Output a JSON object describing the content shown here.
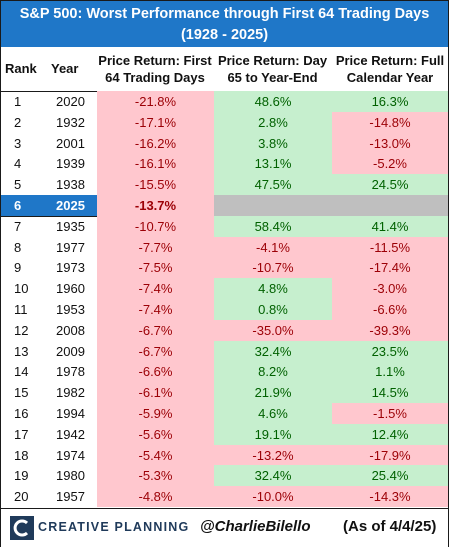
{
  "title": {
    "line1": "S&P 500: Worst Performance through First 64 Trading Days",
    "line2": "(1928 - 2025)"
  },
  "headers": {
    "rank": "Rank",
    "year": "Year",
    "col1": [
      "Price Return: First",
      "64 Trading Days"
    ],
    "col2": [
      "Price Return: Day",
      "65 to Year-End"
    ],
    "col3": [
      "Price Return: Full",
      "Calendar  Year"
    ]
  },
  "rows": [
    {
      "rank": "1",
      "year": "2020",
      "first64": "-21.8%",
      "day65": "48.6%",
      "full": "16.3%"
    },
    {
      "rank": "2",
      "year": "1932",
      "first64": "-17.1%",
      "day65": "2.8%",
      "full": "-14.8%"
    },
    {
      "rank": "3",
      "year": "2001",
      "first64": "-16.2%",
      "day65": "3.8%",
      "full": "-13.0%"
    },
    {
      "rank": "4",
      "year": "1939",
      "first64": "-16.1%",
      "day65": "13.1%",
      "full": "-5.2%"
    },
    {
      "rank": "5",
      "year": "1938",
      "first64": "-15.5%",
      "day65": "47.5%",
      "full": "24.5%"
    },
    {
      "rank": "6",
      "year": "2025",
      "first64": "-13.7%",
      "day65": "",
      "full": "",
      "highlight": true
    },
    {
      "rank": "7",
      "year": "1935",
      "first64": "-10.7%",
      "day65": "58.4%",
      "full": "41.4%"
    },
    {
      "rank": "8",
      "year": "1977",
      "first64": "-7.7%",
      "day65": "-4.1%",
      "full": "-11.5%"
    },
    {
      "rank": "9",
      "year": "1973",
      "first64": "-7.5%",
      "day65": "-10.7%",
      "full": "-17.4%"
    },
    {
      "rank": "10",
      "year": "1960",
      "first64": "-7.4%",
      "day65": "4.8%",
      "full": "-3.0%"
    },
    {
      "rank": "11",
      "year": "1953",
      "first64": "-7.4%",
      "day65": "0.8%",
      "full": "-6.6%"
    },
    {
      "rank": "12",
      "year": "2008",
      "first64": "-6.7%",
      "day65": "-35.0%",
      "full": "-39.3%"
    },
    {
      "rank": "13",
      "year": "2009",
      "first64": "-6.7%",
      "day65": "32.4%",
      "full": "23.5%"
    },
    {
      "rank": "14",
      "year": "1978",
      "first64": "-6.6%",
      "day65": "8.2%",
      "full": "1.1%"
    },
    {
      "rank": "15",
      "year": "1982",
      "first64": "-6.1%",
      "day65": "21.9%",
      "full": "14.5%"
    },
    {
      "rank": "16",
      "year": "1994",
      "first64": "-5.9%",
      "day65": "4.6%",
      "full": "-1.5%"
    },
    {
      "rank": "17",
      "year": "1942",
      "first64": "-5.6%",
      "day65": "19.1%",
      "full": "12.4%"
    },
    {
      "rank": "18",
      "year": "1974",
      "first64": "-5.4%",
      "day65": "-13.2%",
      "full": "-17.9%"
    },
    {
      "rank": "19",
      "year": "1980",
      "first64": "-5.3%",
      "day65": "32.4%",
      "full": "25.4%"
    },
    {
      "rank": "20",
      "year": "1957",
      "first64": "-4.8%",
      "day65": "-10.0%",
      "full": "-14.3%"
    }
  ],
  "footer": {
    "logo_text": "CREATIVE PLANNING",
    "handle": "@CharlieBilello",
    "as_of": "(As of 4/4/25)"
  },
  "colors": {
    "header_blue": "#1f77c8",
    "negative_fill": "#ffc7ce",
    "negative_text": "#9c0006",
    "positive_fill": "#c6efce",
    "positive_text": "#006100",
    "pending_fill": "#bfbfbf"
  }
}
